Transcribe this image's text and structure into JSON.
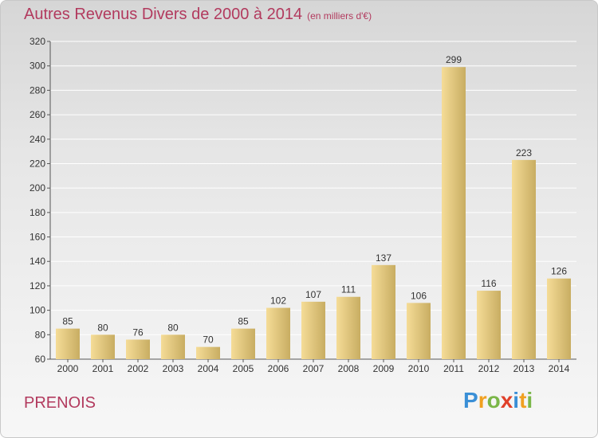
{
  "header": {
    "title": "Autres Revenus Divers de 2000 à 2014",
    "subtitle": "(en milliers d'€)"
  },
  "footer": {
    "commune": "PRENOIS",
    "logo": {
      "letters": [
        "P",
        "r",
        "o",
        "x",
        "i",
        "t",
        "i"
      ],
      "colors": [
        "#3a8fd6",
        "#f0a020",
        "#7ab648",
        "#e0402a",
        "#3a8fd6",
        "#f0a020",
        "#7ab648"
      ]
    }
  },
  "colors": {
    "bar_light": "#f5dc97",
    "bar_dark": "#c8ad62",
    "title": "#b23a5e",
    "grid": "#ffffff",
    "axis": "#555555"
  },
  "chart_data": {
    "type": "bar",
    "title": "Autres Revenus Divers de 2000 à 2014",
    "subtitle": "(en milliers d'€)",
    "xlabel": "",
    "ylabel": "",
    "categories": [
      "2000",
      "2001",
      "2002",
      "2003",
      "2004",
      "2005",
      "2006",
      "2007",
      "2008",
      "2009",
      "2010",
      "2011",
      "2012",
      "2013",
      "2014"
    ],
    "values": [
      85,
      80,
      76,
      80,
      70,
      85,
      102,
      107,
      111,
      137,
      106,
      299,
      116,
      223,
      126
    ],
    "ylim": [
      60,
      320
    ],
    "yticks": [
      60,
      80,
      100,
      120,
      140,
      160,
      180,
      200,
      220,
      240,
      260,
      280,
      300,
      320
    ],
    "grid": true,
    "data_labels": true
  }
}
